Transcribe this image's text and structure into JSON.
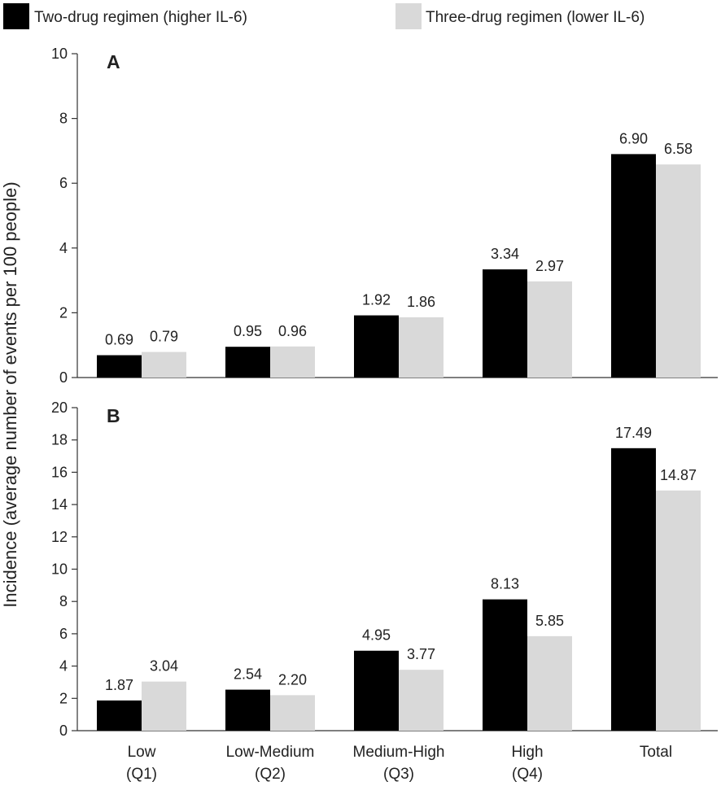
{
  "chart_data": {
    "type": "bar",
    "ylabel": "Incidence (average number of events per 100 people)",
    "legend": {
      "placement": "top",
      "entries": [
        {
          "name": "Two-drug regimen (higher IL-6)",
          "color": "#000000"
        },
        {
          "name": "Three-drug regimen (lower IL-6)",
          "color": "#d9d9d9"
        }
      ]
    },
    "categories": [
      {
        "line1": "Low",
        "line2": "(Q1)"
      },
      {
        "line1": "Low-Medium",
        "line2": "(Q2)"
      },
      {
        "line1": "Medium-High",
        "line2": "(Q3)"
      },
      {
        "line1": "High",
        "line2": "(Q4)"
      },
      {
        "line1": "Total",
        "line2": ""
      }
    ],
    "panels": [
      {
        "label": "A",
        "ylim": [
          0,
          10
        ],
        "yticks": [
          0,
          2,
          4,
          6,
          8,
          10
        ],
        "series": [
          {
            "name": "Two-drug regimen (higher IL-6)",
            "color": "#000000",
            "values": [
              0.69,
              0.95,
              1.92,
              3.34,
              6.9
            ],
            "labels": [
              "0.69",
              "0.95",
              "1.92",
              "3.34",
              "6.90"
            ]
          },
          {
            "name": "Three-drug regimen (lower IL-6)",
            "color": "#d9d9d9",
            "values": [
              0.79,
              0.96,
              1.86,
              2.97,
              6.58
            ],
            "labels": [
              "0.79",
              "0.96",
              "1.86",
              "2.97",
              "6.58"
            ]
          }
        ]
      },
      {
        "label": "B",
        "ylim": [
          0,
          20
        ],
        "yticks": [
          0,
          2,
          4,
          6,
          8,
          10,
          12,
          14,
          16,
          18,
          20
        ],
        "series": [
          {
            "name": "Two-drug regimen (higher IL-6)",
            "color": "#000000",
            "values": [
              1.87,
              2.54,
              4.95,
              8.13,
              17.49
            ],
            "labels": [
              "1.87",
              "2.54",
              "4.95",
              "8.13",
              "17.49"
            ]
          },
          {
            "name": "Three-drug regimen (lower IL-6)",
            "color": "#d9d9d9",
            "values": [
              3.04,
              2.2,
              3.77,
              5.85,
              14.87
            ],
            "labels": [
              "3.04",
              "2.20",
              "3.77",
              "5.85",
              "14.87"
            ]
          }
        ]
      }
    ]
  }
}
